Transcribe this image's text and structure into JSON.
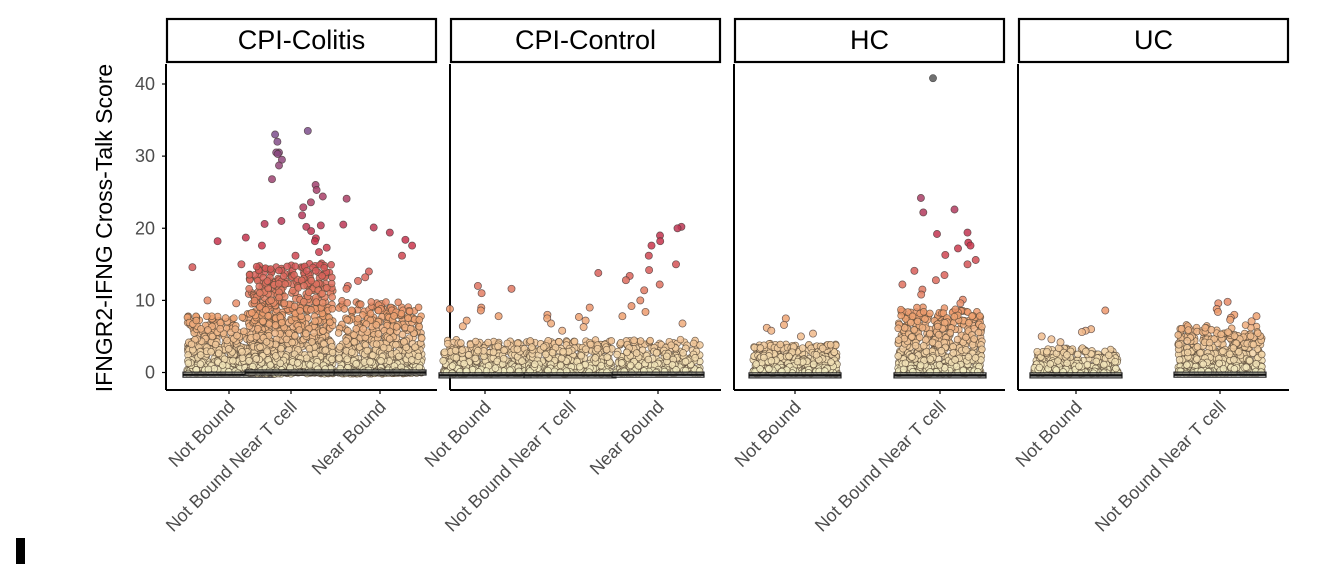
{
  "chart_data": {
    "type": "scatter",
    "subtype": "faceted jitter plot with boxplot overlay",
    "ylabel": "IFNGR2-IFNG Cross-Talk Score",
    "xlabel": "",
    "ylim": [
      -3,
      43
    ],
    "yticks": [
      0,
      10,
      20,
      30,
      40
    ],
    "colors": {
      "low": "#f3efc4",
      "mid": "#ef9f6e",
      "high": "#c8324b",
      "top": "#7d4f8c",
      "outlier": "#707070",
      "frame": "#000000"
    },
    "panels": [
      {
        "title": "CPI-Colitis",
        "categories": [
          "Not Bound",
          "Not Bound Near T cell",
          "Near Bound"
        ],
        "groups": [
          {
            "category": "Not Bound",
            "count": 600,
            "bulk_max": 8,
            "median": -0.3,
            "top_points": [
              18.7,
              18.2,
              17.6,
              15.0,
              14.6,
              14.4,
              13.0,
              11.3,
              10.9,
              10.4,
              10.0,
              9.6
            ]
          },
          {
            "category": "Not Bound Near T cell",
            "count": 1000,
            "bulk_max": 15,
            "median": 0.0,
            "top_points": [
              33.5,
              33.0,
              32.0,
              30.5,
              30.5,
              30.3,
              29.5,
              28.7,
              26.8,
              26.0,
              25.3,
              24.4,
              23.6,
              22.9,
              21.8,
              21.0,
              20.6,
              20.4,
              20.2,
              19.6,
              18.6,
              18.2,
              17.3,
              16.7,
              16.2
            ]
          },
          {
            "category": "Near Bound",
            "count": 700,
            "bulk_max": 10,
            "median": 0.0,
            "top_points": [
              24.1,
              20.5,
              20.1,
              19.4,
              18.4,
              17.6,
              16.2,
              14.0,
              13.2,
              12.7,
              12.0,
              11.6
            ]
          }
        ]
      },
      {
        "title": "CPI-Control",
        "categories": [
          "Not Bound",
          "Not Bound Near T cell",
          "Near Bound"
        ],
        "groups": [
          {
            "category": "Not Bound",
            "count": 380,
            "bulk_max": 4.5,
            "median": -0.4,
            "top_points": [
              12.0,
              11.6,
              11.0,
              9.0,
              8.8,
              8.6,
              7.8,
              7.2,
              6.4
            ]
          },
          {
            "category": "Not Bound Near T cell",
            "count": 380,
            "bulk_max": 4.5,
            "median": -0.4,
            "top_points": [
              13.8,
              9.0,
              8.0,
              7.7,
              7.5,
              7.2,
              6.8,
              6.3,
              5.8
            ]
          },
          {
            "category": "Near Bound",
            "count": 320,
            "bulk_max": 4.5,
            "median": -0.3,
            "top_points": [
              20.2,
              20.0,
              19.0,
              18.2,
              17.6,
              16.2,
              15.0,
              14.2,
              13.4,
              12.8,
              12.2,
              11.4,
              10.0,
              9.2,
              8.4,
              7.8,
              6.8
            ]
          }
        ]
      },
      {
        "title": "HC",
        "categories": [
          "Not Bound",
          "Not Bound Near T cell"
        ],
        "groups": [
          {
            "category": "Not Bound",
            "count": 480,
            "bulk_max": 4,
            "median": -0.4,
            "top_points": [
              7.5,
              6.6,
              6.2,
              5.8,
              5.4,
              5.0
            ]
          },
          {
            "category": "Not Bound Near T cell",
            "count": 650,
            "bulk_max": 9,
            "median": -0.4,
            "top_points": [
              24.2,
              22.6,
              22.2,
              19.4,
              19.2,
              18.0,
              17.6,
              17.2,
              16.3,
              15.6,
              15.0,
              14.1,
              13.5,
              12.8,
              12.2,
              11.5,
              10.8,
              10.1,
              9.6
            ]
          }
        ]
      },
      {
        "title": "UC",
        "categories": [
          "Not Bound",
          "Not Bound Near T cell"
        ],
        "groups": [
          {
            "category": "Not Bound",
            "count": 320,
            "bulk_max": 3.5,
            "median": -0.4,
            "top_points": [
              8.6,
              6.0,
              5.8,
              5.6,
              5.0,
              4.6,
              4.2
            ]
          },
          {
            "category": "Not Bound Near T cell",
            "count": 550,
            "bulk_max": 6.5,
            "median": -0.3,
            "top_points": [
              9.8,
              9.6,
              8.8,
              8.4,
              8.0,
              7.8,
              7.6,
              7.3,
              7.1
            ]
          }
        ]
      }
    ],
    "boxplot_outliers": [
      {
        "panel": "HC",
        "value": 40.8
      }
    ]
  }
}
